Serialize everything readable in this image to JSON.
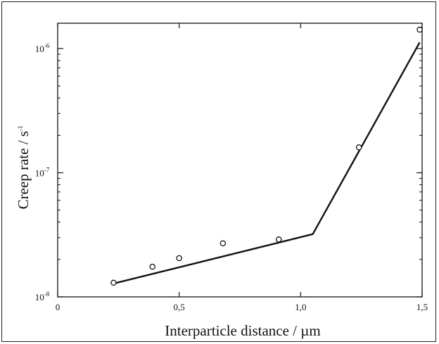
{
  "chart_data": {
    "type": "scatter",
    "xlabel": "Interparticle distance / µm",
    "ylabel": "Creep rate / s",
    "ylabel_sup": "-1",
    "xlim": [
      0,
      1.5
    ],
    "ylim": [
      1e-08,
      1.6e-06
    ],
    "yscale": "log",
    "x_ticks": [
      {
        "value": 0,
        "label": "0"
      },
      {
        "value": 0.5,
        "label": "0,5"
      },
      {
        "value": 1.0,
        "label": "1,0"
      },
      {
        "value": 1.5,
        "label": "1,5"
      }
    ],
    "y_ticks": [
      {
        "value": 1e-08,
        "base": "10",
        "exp": "-8"
      },
      {
        "value": 1e-07,
        "base": "10",
        "exp": "-7"
      },
      {
        "value": 1e-06,
        "base": "10",
        "exp": "-6"
      }
    ],
    "points": [
      {
        "x": 0.23,
        "y": 1.3e-08
      },
      {
        "x": 0.39,
        "y": 1.75e-08
      },
      {
        "x": 0.5,
        "y": 2.05e-08
      },
      {
        "x": 0.68,
        "y": 2.7e-08
      },
      {
        "x": 0.91,
        "y": 2.9e-08
      },
      {
        "x": 1.24,
        "y": 1.6e-07
      },
      {
        "x": 1.49,
        "y": 1.42e-06
      }
    ],
    "fit_line": [
      {
        "x": 0.23,
        "y": 1.28e-08
      },
      {
        "x": 1.05,
        "y": 3.2e-08
      },
      {
        "x": 1.49,
        "y": 1.12e-06
      }
    ],
    "grid": false,
    "marker": "open-circle"
  }
}
